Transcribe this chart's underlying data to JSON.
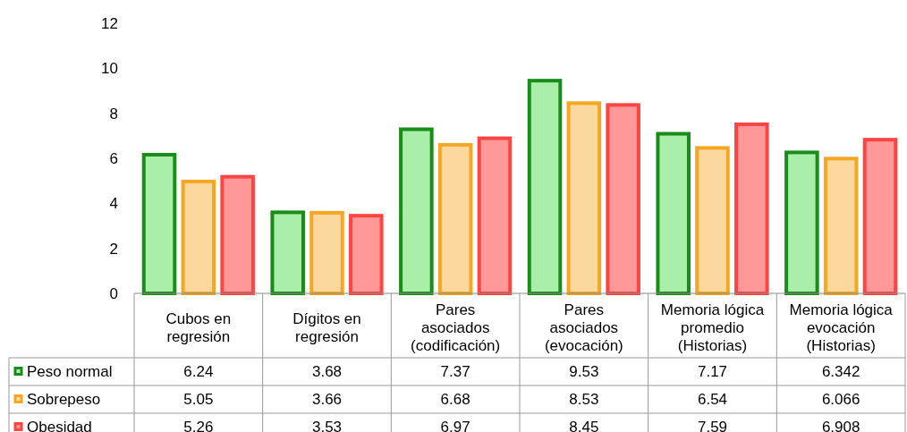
{
  "chart_data": {
    "type": "bar",
    "categories": [
      "Cubos en regresión",
      "Dígitos en regresión",
      "Pares asociados (codificación)",
      "Pares asociados (evocación)",
      "Memoria lógica promedio (Historias)",
      "Memoria lógica evocación (Historias)"
    ],
    "series": [
      {
        "name": "Peso normal",
        "color": "#1a8c1a",
        "values": [
          6.24,
          3.68,
          7.37,
          9.53,
          7.17,
          6.342
        ]
      },
      {
        "name": "Sobrepeso",
        "color": "#f5a623",
        "values": [
          5.05,
          3.66,
          6.68,
          8.53,
          6.54,
          6.066
        ]
      },
      {
        "name": "Obesidad",
        "color": "#ff4444",
        "values": [
          5.26,
          3.53,
          6.97,
          8.45,
          7.59,
          6.908
        ]
      }
    ],
    "ylim": [
      0,
      12
    ],
    "yticks": [
      0,
      2,
      4,
      6,
      8,
      10,
      12
    ],
    "grid": false,
    "data_labels": true,
    "legend": "bottom left"
  }
}
